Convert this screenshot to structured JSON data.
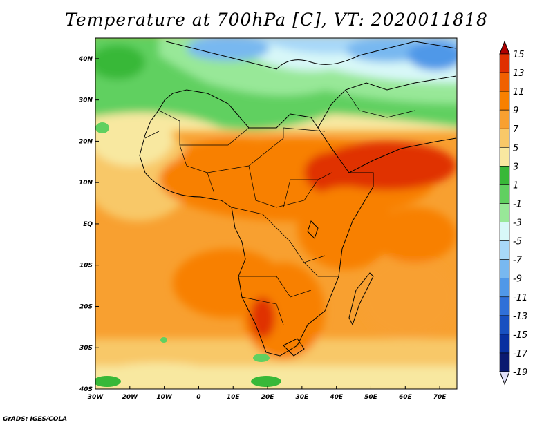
{
  "title": "Temperature at 700hPa [C], VT: 2020011818",
  "credit": "GrADS: IGES/COLA",
  "map": {
    "lon_range": [
      -30,
      75
    ],
    "lat_range": [
      -40,
      45
    ],
    "lon_ticks": [
      "30W",
      "20W",
      "10W",
      "0",
      "10E",
      "20E",
      "30E",
      "40E",
      "50E",
      "60E",
      "70E"
    ],
    "lat_ticks": [
      "40N",
      "30N",
      "20N",
      "10N",
      "EQ",
      "10S",
      "20S",
      "30S",
      "40S"
    ],
    "region": "Africa, Arabian Peninsula and southern Europe"
  },
  "colorbar": {
    "labels": [
      "15",
      "13",
      "11",
      "9",
      "7",
      "5",
      "3",
      "1",
      "-1",
      "-3",
      "-5",
      "-7",
      "-9",
      "-11",
      "-13",
      "-15",
      "-17",
      "-19"
    ],
    "colors": [
      "#b00000",
      "#e03000",
      "#f06000",
      "#f88000",
      "#f8a030",
      "#f8c868",
      "#f8e8a0",
      "#38b838",
      "#60d060",
      "#98e898",
      "#d8f8f8",
      "#a8d8f8",
      "#78b8f0",
      "#5098e8",
      "#3070d8",
      "#1850c0",
      "#0830a0",
      "#0a1a70",
      "#e0e0f8"
    ]
  }
}
